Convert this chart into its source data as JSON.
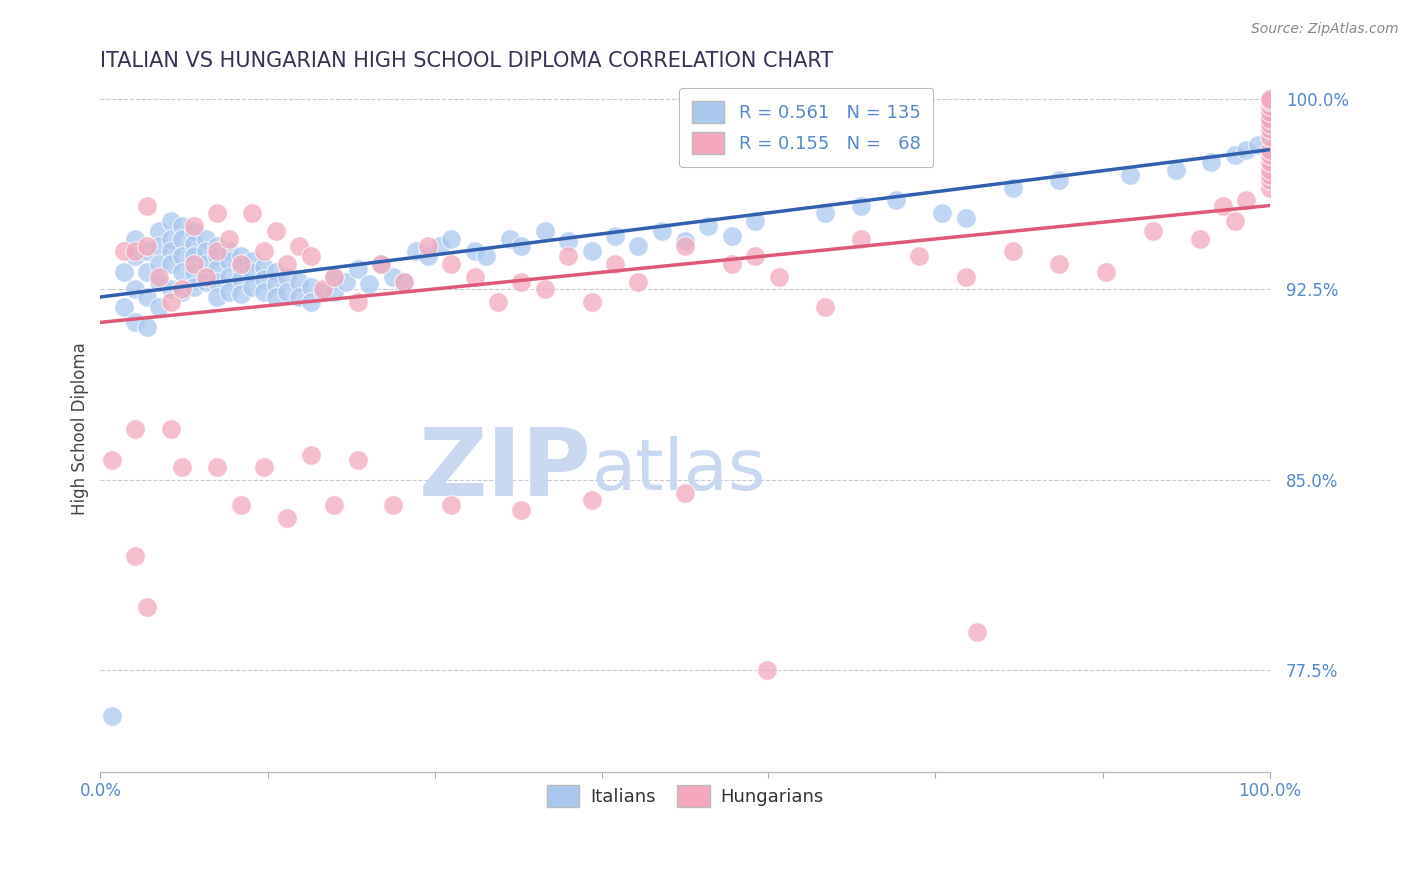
{
  "title": "ITALIAN VS HUNGARIAN HIGH SCHOOL DIPLOMA CORRELATION CHART",
  "source": "Source: ZipAtlas.com",
  "ylabel": "High School Diploma",
  "xlim": [
    0.0,
    1.0
  ],
  "ylim_low": 0.735,
  "ylim_high": 1.005,
  "yticks": [
    0.775,
    0.85,
    0.925,
    1.0
  ],
  "ytick_labels": [
    "77.5%",
    "85.0%",
    "92.5%",
    "100.0%"
  ],
  "xticks": [
    0.0,
    0.143,
    0.286,
    0.429,
    0.571,
    0.714,
    0.857,
    1.0
  ],
  "xtick_labels": [
    "0.0%",
    "",
    "",
    "",
    "",
    "",
    "",
    "100.0%"
  ],
  "legend_italian_R": 0.561,
  "legend_italian_N": 135,
  "legend_hungarian_R": 0.155,
  "legend_hungarian_N": 68,
  "italian_color": "#A8C8F0",
  "hungarian_color": "#F4A8BC",
  "trend_italian_color": "#3060B0",
  "trend_hungarian_color": "#E05878",
  "watermark_zip": "ZIP",
  "watermark_atlas": "atlas",
  "watermark_color": "#C8D8F0",
  "background_color": "#FFFFFF",
  "italian_trend_start_y": 0.922,
  "italian_trend_end_y": 0.98,
  "hungarian_trend_start_y": 0.912,
  "hungarian_trend_end_y": 0.958,
  "italian_points_x": [
    0.01,
    0.02,
    0.02,
    0.03,
    0.03,
    0.03,
    0.03,
    0.04,
    0.04,
    0.04,
    0.04,
    0.05,
    0.05,
    0.05,
    0.05,
    0.05,
    0.06,
    0.06,
    0.06,
    0.06,
    0.06,
    0.07,
    0.07,
    0.07,
    0.07,
    0.07,
    0.08,
    0.08,
    0.08,
    0.08,
    0.08,
    0.09,
    0.09,
    0.09,
    0.09,
    0.1,
    0.1,
    0.1,
    0.1,
    0.1,
    0.11,
    0.11,
    0.11,
    0.11,
    0.12,
    0.12,
    0.12,
    0.12,
    0.13,
    0.13,
    0.13,
    0.14,
    0.14,
    0.14,
    0.15,
    0.15,
    0.15,
    0.16,
    0.16,
    0.17,
    0.17,
    0.18,
    0.18,
    0.19,
    0.2,
    0.2,
    0.21,
    0.22,
    0.23,
    0.24,
    0.25,
    0.26,
    0.27,
    0.28,
    0.29,
    0.3,
    0.32,
    0.33,
    0.35,
    0.36,
    0.38,
    0.4,
    0.42,
    0.44,
    0.46,
    0.48,
    0.5,
    0.52,
    0.54,
    0.56,
    0.62,
    0.65,
    0.68,
    0.72,
    0.74,
    0.78,
    0.82,
    0.88,
    0.92,
    0.95,
    0.97,
    0.98,
    0.99,
    1.0,
    1.0,
    1.0,
    1.0,
    1.0,
    1.0,
    1.0,
    1.0,
    1.0,
    1.0,
    1.0,
    1.0,
    1.0,
    1.0,
    1.0,
    1.0,
    1.0,
    1.0,
    1.0,
    1.0,
    1.0,
    1.0,
    1.0,
    1.0,
    1.0,
    1.0,
    1.0,
    1.0,
    1.0,
    1.0,
    1.0,
    1.0
  ],
  "italian_points_y": [
    0.757,
    0.932,
    0.918,
    0.945,
    0.938,
    0.925,
    0.912,
    0.94,
    0.932,
    0.922,
    0.91,
    0.948,
    0.942,
    0.935,
    0.928,
    0.918,
    0.952,
    0.945,
    0.94,
    0.935,
    0.925,
    0.95,
    0.945,
    0.938,
    0.932,
    0.924,
    0.948,
    0.943,
    0.938,
    0.932,
    0.926,
    0.945,
    0.94,
    0.935,
    0.928,
    0.942,
    0.938,
    0.933,
    0.928,
    0.922,
    0.94,
    0.936,
    0.93,
    0.924,
    0.938,
    0.934,
    0.929,
    0.923,
    0.936,
    0.932,
    0.926,
    0.934,
    0.929,
    0.924,
    0.932,
    0.927,
    0.922,
    0.93,
    0.924,
    0.928,
    0.922,
    0.926,
    0.92,
    0.924,
    0.93,
    0.924,
    0.928,
    0.933,
    0.927,
    0.935,
    0.93,
    0.928,
    0.94,
    0.938,
    0.942,
    0.945,
    0.94,
    0.938,
    0.945,
    0.942,
    0.948,
    0.944,
    0.94,
    0.946,
    0.942,
    0.948,
    0.944,
    0.95,
    0.946,
    0.952,
    0.955,
    0.958,
    0.96,
    0.955,
    0.953,
    0.965,
    0.968,
    0.97,
    0.972,
    0.975,
    0.978,
    0.98,
    0.982,
    0.985,
    0.987,
    0.988,
    0.99,
    0.991,
    0.992,
    0.993,
    0.995,
    0.997,
    0.998,
    0.999,
    1.0,
    1.0,
    1.0,
    1.0,
    1.0,
    1.0,
    1.0,
    1.0,
    1.0,
    1.0,
    1.0,
    1.0,
    1.0,
    1.0,
    1.0,
    1.0,
    1.0,
    1.0,
    1.0,
    1.0,
    1.0
  ],
  "hungarian_points_x": [
    0.01,
    0.02,
    0.03,
    0.03,
    0.04,
    0.04,
    0.05,
    0.06,
    0.07,
    0.08,
    0.08,
    0.09,
    0.1,
    0.1,
    0.11,
    0.12,
    0.13,
    0.14,
    0.15,
    0.16,
    0.17,
    0.18,
    0.19,
    0.2,
    0.22,
    0.24,
    0.26,
    0.28,
    0.3,
    0.32,
    0.34,
    0.36,
    0.38,
    0.4,
    0.42,
    0.44,
    0.46,
    0.5,
    0.54,
    0.56,
    0.58,
    0.62,
    0.65,
    0.7,
    0.74,
    0.78,
    0.82,
    0.86,
    0.9,
    0.94,
    0.96,
    0.97,
    0.98,
    1.0,
    1.0,
    1.0,
    1.0,
    1.0,
    1.0,
    1.0,
    1.0,
    1.0,
    1.0,
    1.0,
    1.0,
    1.0,
    1.0,
    1.0
  ],
  "hungarian_points_y": [
    0.858,
    0.94,
    0.94,
    0.87,
    0.958,
    0.942,
    0.93,
    0.92,
    0.925,
    0.95,
    0.935,
    0.93,
    0.955,
    0.94,
    0.945,
    0.935,
    0.955,
    0.94,
    0.948,
    0.935,
    0.942,
    0.938,
    0.925,
    0.93,
    0.92,
    0.935,
    0.928,
    0.942,
    0.935,
    0.93,
    0.92,
    0.928,
    0.925,
    0.938,
    0.92,
    0.935,
    0.928,
    0.942,
    0.935,
    0.938,
    0.93,
    0.918,
    0.945,
    0.938,
    0.93,
    0.94,
    0.935,
    0.932,
    0.948,
    0.945,
    0.958,
    0.952,
    0.96,
    0.965,
    0.968,
    0.97,
    0.972,
    0.975,
    0.978,
    0.98,
    0.985,
    0.988,
    0.99,
    0.992,
    0.995,
    0.997,
    0.999,
    1.0
  ],
  "hungarian_low_x": [
    0.03,
    0.04,
    0.06,
    0.07,
    0.1,
    0.12,
    0.14,
    0.16,
    0.18,
    0.2,
    0.22,
    0.25,
    0.3,
    0.36,
    0.42,
    0.5,
    0.57,
    0.75
  ],
  "hungarian_low_y": [
    0.82,
    0.8,
    0.87,
    0.855,
    0.855,
    0.84,
    0.855,
    0.835,
    0.86,
    0.84,
    0.858,
    0.84,
    0.84,
    0.838,
    0.842,
    0.845,
    0.775,
    0.79
  ]
}
